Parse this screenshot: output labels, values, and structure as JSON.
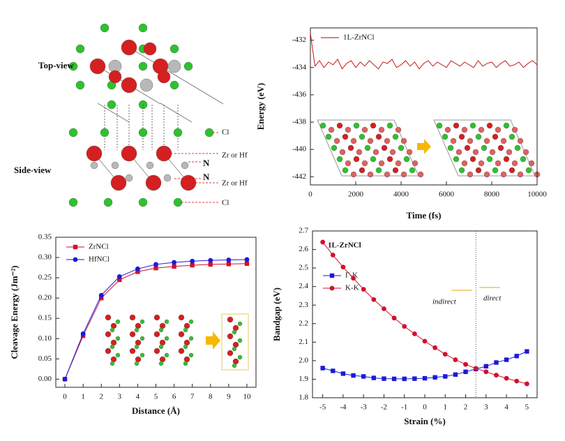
{
  "structure": {
    "labels": [
      "Top-view",
      "Side-view",
      "Cl",
      "Zr or Hf",
      "N",
      "N",
      "Zr or Hf",
      "Cl"
    ]
  },
  "chart_data": [
    {
      "type": "line",
      "xlabel": "Time (fs)",
      "ylabel": "Energy (eV)",
      "x": [
        0,
        200,
        400,
        600,
        800,
        1000,
        1200,
        1400,
        1600,
        1800,
        2000,
        2200,
        2400,
        2600,
        2800,
        3000,
        3200,
        3400,
        3600,
        3800,
        4000,
        4200,
        4400,
        4600,
        4800,
        5000,
        5200,
        5400,
        5600,
        5800,
        6000,
        6200,
        6400,
        6600,
        6800,
        7000,
        7200,
        7400,
        7600,
        7800,
        8000,
        8200,
        8400,
        8600,
        8800,
        9000,
        9200,
        9400,
        9600,
        9800,
        10000
      ],
      "series": [
        {
          "name": "1L-ZrNCl",
          "color": "#c00000",
          "values": [
            -431.5,
            -433.9,
            -433.5,
            -434.0,
            -433.6,
            -433.8,
            -433.4,
            -434.1,
            -433.7,
            -433.5,
            -434.0,
            -433.6,
            -433.9,
            -433.5,
            -433.8,
            -434.1,
            -433.6,
            -433.7,
            -433.4,
            -434.0,
            -433.8,
            -433.5,
            -433.9,
            -433.6,
            -434.1,
            -433.7,
            -433.5,
            -433.9,
            -433.6,
            -433.8,
            -434.0,
            -433.5,
            -433.7,
            -433.9,
            -433.6,
            -433.8,
            -434.0,
            -433.5,
            -433.9,
            -433.7,
            -433.6,
            -434.0,
            -433.7,
            -433.5,
            -433.9,
            -433.8,
            -433.6,
            -434.0,
            -433.7,
            -433.5,
            -433.8
          ]
        }
      ],
      "xlim": [
        0,
        10000
      ],
      "xticks": [
        0,
        2000,
        4000,
        6000,
        8000,
        10000
      ],
      "ylim": [
        -442.6,
        -431.1
      ],
      "yticks": [
        -432,
        -434,
        -436,
        -438,
        -440,
        -442
      ],
      "legend": "upper left"
    },
    {
      "type": "line",
      "xlabel": "Distance (Å)",
      "ylabel": "Cleavage Energy (Jm⁻²)",
      "x": [
        0,
        1,
        2,
        3,
        4,
        5,
        6,
        7,
        8,
        9,
        10
      ],
      "series": [
        {
          "name": "ZrNCl",
          "color": "#d0112b",
          "marker": "square",
          "values": [
            0,
            0.107,
            0.2,
            0.245,
            0.265,
            0.274,
            0.278,
            0.281,
            0.283,
            0.284,
            0.285
          ]
        },
        {
          "name": "HfNCl",
          "color": "#1a1adb",
          "marker": "circle",
          "values": [
            0,
            0.112,
            0.207,
            0.253,
            0.272,
            0.283,
            0.288,
            0.291,
            0.293,
            0.294,
            0.295
          ]
        }
      ],
      "xlim": [
        -0.5,
        10.5
      ],
      "xticks": [
        0,
        1,
        2,
        3,
        4,
        5,
        6,
        7,
        8,
        9,
        10
      ],
      "ylim": [
        -0.02,
        0.35
      ],
      "yticks": [
        {
          "value": 0,
          "label": "0.00"
        },
        0.05,
        {
          "value": 0.1,
          "label": "0.10"
        },
        0.15,
        {
          "value": 0.2,
          "label": "0.20"
        },
        0.25,
        {
          "value": 0.3,
          "label": "0.30"
        },
        0.35
      ],
      "legend": "upper left"
    },
    {
      "type": "line",
      "xlabel": "Strain (%)",
      "ylabel": "Bandgap (eV)",
      "x": [
        -5,
        -4.5,
        -4,
        -3.5,
        -3,
        -2.5,
        -2,
        -1.5,
        -1,
        -0.5,
        0,
        0.5,
        1,
        1.5,
        2,
        2.5,
        3,
        3.5,
        4,
        4.5,
        5
      ],
      "series": [
        {
          "name": "Γ-K",
          "color": "#1a1adb",
          "marker": "square",
          "values": [
            1.96,
            1.945,
            1.93,
            1.92,
            1.915,
            1.907,
            1.903,
            1.902,
            1.902,
            1.903,
            1.905,
            1.91,
            1.915,
            1.925,
            1.94,
            1.955,
            1.97,
            1.99,
            2.005,
            2.025,
            2.05
          ]
        },
        {
          "name": "K-K",
          "color": "#d0112b",
          "marker": "circle",
          "values": [
            2.64,
            2.57,
            2.505,
            2.445,
            2.385,
            2.33,
            2.28,
            2.23,
            2.185,
            2.145,
            2.105,
            2.07,
            2.035,
            2.005,
            1.98,
            1.958,
            1.94,
            1.922,
            1.905,
            1.89,
            1.875
          ]
        }
      ],
      "xlim": [
        -5.5,
        5.5
      ],
      "xticks": [
        -5,
        -4,
        -3,
        -2,
        -1,
        0,
        1,
        2,
        3,
        4,
        5
      ],
      "ylim": [
        1.8,
        2.7
      ],
      "yticks": [
        1.8,
        1.9,
        {
          "value": 2,
          "label": "2.0"
        },
        2.1,
        2.2,
        2.3,
        2.4,
        2.5,
        2.6,
        2.7
      ],
      "legend": "upper left",
      "vline": 2.5,
      "annotations": [
        "1L-ZrNCl",
        "indirect",
        "direct"
      ]
    }
  ]
}
